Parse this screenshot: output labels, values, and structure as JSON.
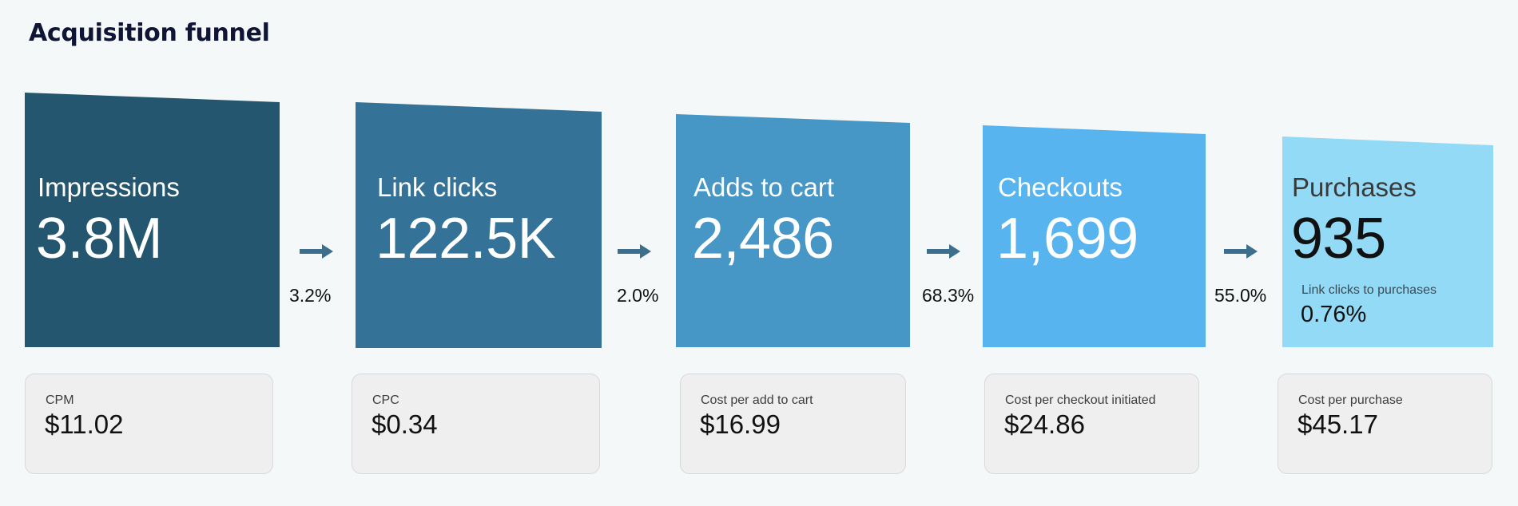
{
  "title": "Acquisition funnel",
  "colors": {
    "impressions": "#24566f",
    "link_clicks": "#347397",
    "adds_to_cart": "#4696c6",
    "checkouts": "#57b4ee",
    "purchases": "#92daf6",
    "arrow": "#3b6f8c",
    "card_bg": "#efefef"
  },
  "stages": [
    {
      "label": "Impressions",
      "value": "3.8M"
    },
    {
      "label": "Link clicks",
      "value": "122.5K"
    },
    {
      "label": "Adds to cart",
      "value": "2,486"
    },
    {
      "label": "Checkouts",
      "value": "1,699"
    },
    {
      "label": "Purchases",
      "value": "935",
      "sub_label": "Link clicks to purchases",
      "sub_value": "0.76%"
    }
  ],
  "conversion_rates": [
    "3.2%",
    "2.0%",
    "68.3%",
    "55.0%"
  ],
  "arrow_icon": "arrow-right-icon",
  "costs": [
    {
      "label": "CPM",
      "value": "$11.02"
    },
    {
      "label": "CPC",
      "value": "$0.34"
    },
    {
      "label": "Cost per add to cart",
      "value": "$16.99"
    },
    {
      "label": "Cost per checkout initiated",
      "value": "$24.86"
    },
    {
      "label": "Cost per purchase",
      "value": "$45.17"
    }
  ]
}
